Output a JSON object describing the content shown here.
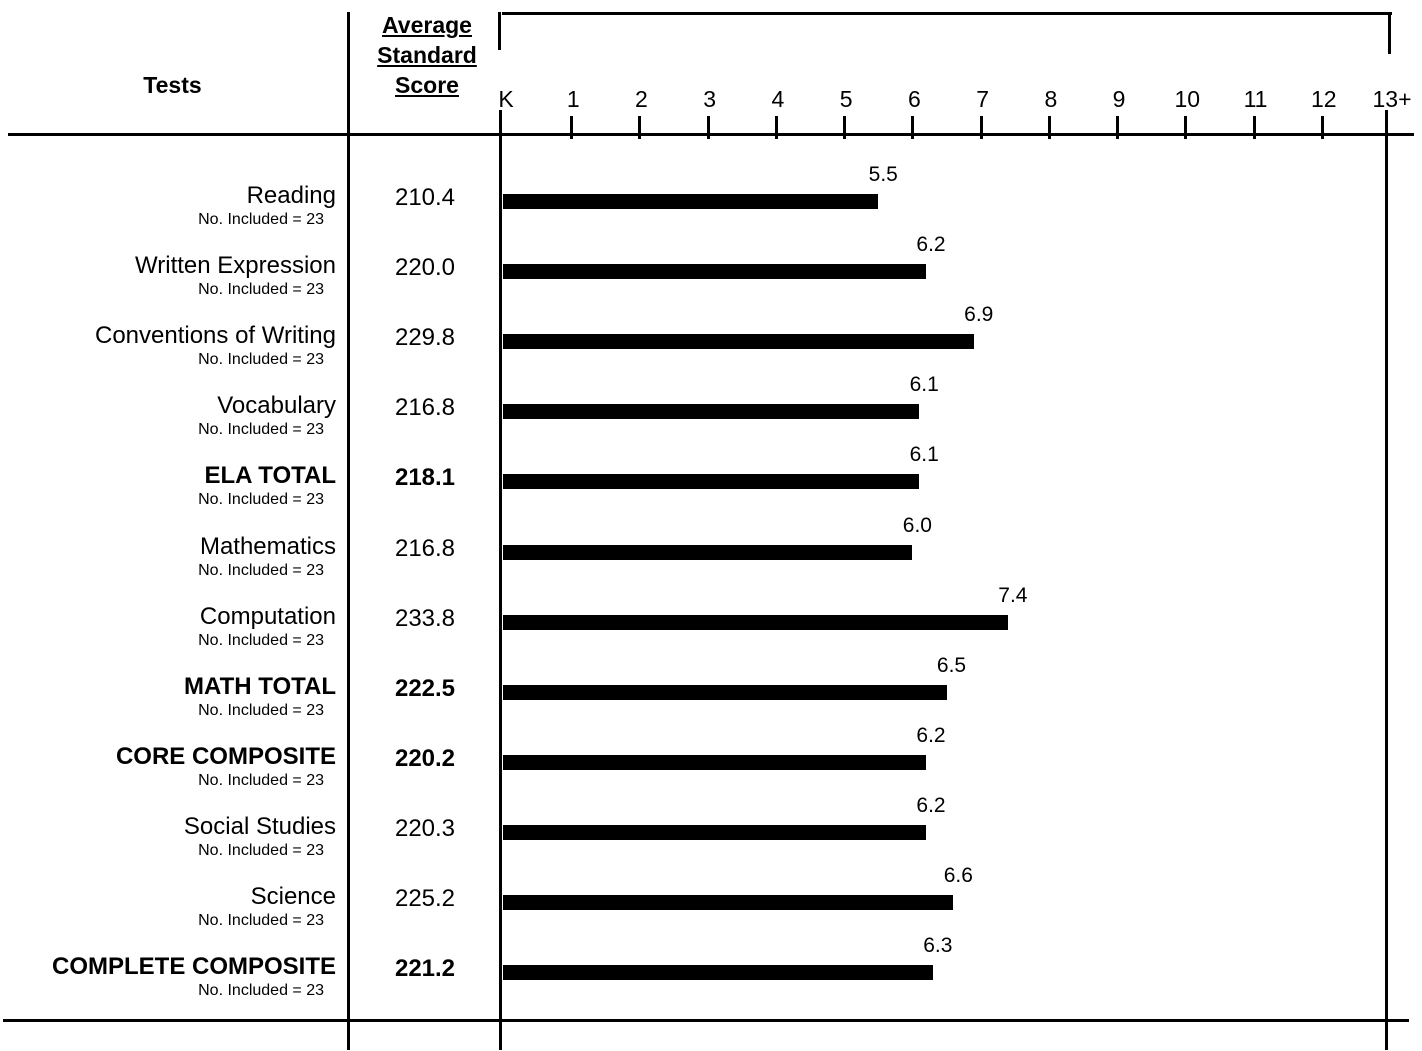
{
  "header": {
    "tests_label": "Tests",
    "score_label_lines": [
      "Average",
      "Standard",
      "Score"
    ]
  },
  "chart_data": {
    "type": "bar",
    "orientation": "horizontal",
    "x_ticks": [
      "K",
      "1",
      "2",
      "3",
      "4",
      "5",
      "6",
      "7",
      "8",
      "9",
      "10",
      "11",
      "12",
      "13+"
    ],
    "xlim": [
      0,
      13
    ],
    "grid": false,
    "rows": [
      {
        "test": "Reading",
        "bold": false,
        "no_included": "No. Included = 23",
        "avg_standard_score": "210.4",
        "value": 5.5,
        "value_label": "5.5"
      },
      {
        "test": "Written Expression",
        "bold": false,
        "no_included": "No. Included = 23",
        "avg_standard_score": "220.0",
        "value": 6.2,
        "value_label": "6.2"
      },
      {
        "test": "Conventions of Writing",
        "bold": false,
        "no_included": "No. Included = 23",
        "avg_standard_score": "229.8",
        "value": 6.9,
        "value_label": "6.9"
      },
      {
        "test": "Vocabulary",
        "bold": false,
        "no_included": "No. Included = 23",
        "avg_standard_score": "216.8",
        "value": 6.1,
        "value_label": "6.1"
      },
      {
        "test": "ELA TOTAL",
        "bold": true,
        "no_included": "No. Included = 23",
        "avg_standard_score": "218.1",
        "value": 6.1,
        "value_label": "6.1"
      },
      {
        "test": "Mathematics",
        "bold": false,
        "no_included": "No. Included = 23",
        "avg_standard_score": "216.8",
        "value": 6.0,
        "value_label": "6.0"
      },
      {
        "test": "Computation",
        "bold": false,
        "no_included": "No. Included = 23",
        "avg_standard_score": "233.8",
        "value": 7.4,
        "value_label": "7.4"
      },
      {
        "test": "MATH TOTAL",
        "bold": true,
        "no_included": "No. Included = 23",
        "avg_standard_score": "222.5",
        "value": 6.5,
        "value_label": "6.5"
      },
      {
        "test": "CORE COMPOSITE",
        "bold": true,
        "no_included": "No. Included = 23",
        "avg_standard_score": "220.2",
        "value": 6.2,
        "value_label": "6.2"
      },
      {
        "test": "Social Studies",
        "bold": false,
        "no_included": "No. Included = 23",
        "avg_standard_score": "220.3",
        "value": 6.2,
        "value_label": "6.2"
      },
      {
        "test": "Science",
        "bold": false,
        "no_included": "No. Included = 23",
        "avg_standard_score": "225.2",
        "value": 6.6,
        "value_label": "6.6"
      },
      {
        "test": "COMPLETE COMPOSITE",
        "bold": true,
        "no_included": "No. Included = 23",
        "avg_standard_score": "221.2",
        "value": 6.3,
        "value_label": "6.3"
      }
    ]
  },
  "colors": {
    "bar": "#000000",
    "background": "#ffffff"
  }
}
